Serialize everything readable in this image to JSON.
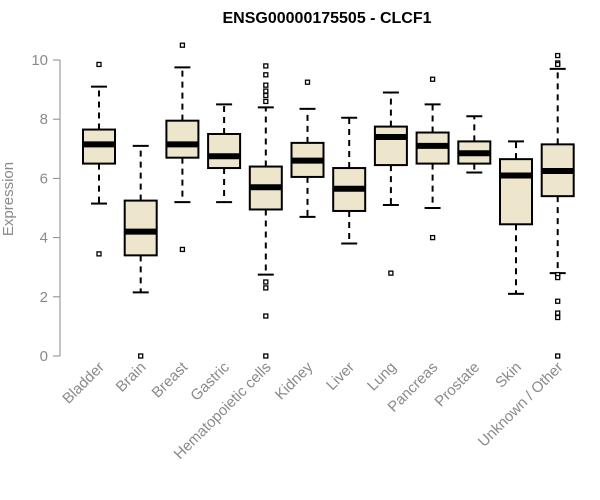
{
  "chart_data": {
    "type": "boxplot",
    "title": "ENSG00000175505 - CLCF1",
    "xlabel": "",
    "ylabel": "Expression",
    "ylim": [
      0,
      10
    ],
    "yticks": [
      0,
      2,
      4,
      6,
      8,
      10
    ],
    "grid": false,
    "box_color": "#ede6cc",
    "categories": [
      "Bladder",
      "Brain",
      "Breast",
      "Gastric",
      "Hematopoietic cells",
      "Kidney",
      "Liver",
      "Lung",
      "Pancreas",
      "Prostate",
      "Skin",
      "Unknown / Other"
    ],
    "boxes": [
      {
        "min": 5.15,
        "q1": 6.5,
        "median": 7.15,
        "q3": 7.65,
        "max": 9.1,
        "outliers": [
          9.85,
          3.45
        ]
      },
      {
        "min": 2.15,
        "q1": 3.4,
        "median": 4.2,
        "q3": 5.25,
        "max": 7.1,
        "outliers": [
          0.0
        ]
      },
      {
        "min": 5.2,
        "q1": 6.7,
        "median": 7.15,
        "q3": 7.95,
        "max": 9.75,
        "outliers": [
          10.5,
          3.6
        ]
      },
      {
        "min": 5.2,
        "q1": 6.35,
        "median": 6.75,
        "q3": 7.5,
        "max": 8.5,
        "outliers": []
      },
      {
        "min": 2.75,
        "q1": 4.95,
        "median": 5.7,
        "q3": 6.4,
        "max": 8.4,
        "outliers": [
          9.8,
          9.5,
          9.15,
          8.95,
          8.8,
          8.6,
          2.5,
          2.3,
          1.35,
          0.0
        ]
      },
      {
        "min": 4.7,
        "q1": 6.05,
        "median": 6.6,
        "q3": 7.2,
        "max": 8.35,
        "outliers": [
          9.25
        ]
      },
      {
        "min": 3.8,
        "q1": 4.9,
        "median": 5.65,
        "q3": 6.35,
        "max": 8.05,
        "outliers": []
      },
      {
        "min": 5.1,
        "q1": 6.45,
        "median": 7.4,
        "q3": 7.75,
        "max": 8.9,
        "outliers": [
          2.8
        ]
      },
      {
        "min": 5.0,
        "q1": 6.5,
        "median": 7.1,
        "q3": 7.55,
        "max": 8.5,
        "outliers": [
          9.35,
          4.0
        ]
      },
      {
        "min": 6.2,
        "q1": 6.5,
        "median": 6.85,
        "q3": 7.25,
        "max": 8.1,
        "outliers": []
      },
      {
        "min": 2.1,
        "q1": 4.45,
        "median": 6.1,
        "q3": 6.65,
        "max": 7.25,
        "outliers": []
      },
      {
        "min": 2.8,
        "q1": 5.4,
        "median": 6.25,
        "q3": 7.15,
        "max": 9.7,
        "outliers": [
          10.15,
          9.9,
          9.85,
          2.75,
          2.65,
          1.85,
          1.45,
          1.3,
          0.0
        ]
      }
    ]
  }
}
